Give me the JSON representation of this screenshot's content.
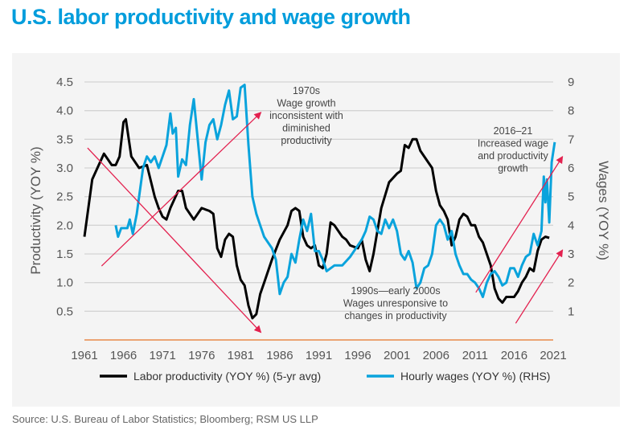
{
  "title": "U.S. labor productivity and wage growth",
  "source": "Source: U.S. Bureau of Labor Statistics; Bloomberg; RSM US LLP",
  "colors": {
    "title": "#009ddc",
    "productivity": "#000000",
    "wages": "#0aa3dc",
    "arrows": "#e3214f",
    "baseline": "#e88a4a"
  },
  "chart_data": {
    "type": "line",
    "title": "U.S. labor productivity and wage growth",
    "ylabel": "Productivity (YOY %)",
    "y2label": "Wages (YOY %)",
    "ylim": [
      0,
      4.5
    ],
    "y2lim": [
      0,
      9
    ],
    "xlim": [
      1961,
      2021
    ],
    "xticks": [
      "1961",
      "1966",
      "1971",
      "1976",
      "1981",
      "1986",
      "1991",
      "1996",
      "2001",
      "2006",
      "2011",
      "2016",
      "2021"
    ],
    "yticks": [
      "0.5",
      "1.0",
      "1.5",
      "2.0",
      "2.5",
      "3.0",
      "3.5",
      "4.0",
      "4.5"
    ],
    "y2ticks": [
      "1",
      "2",
      "3",
      "4",
      "5",
      "6",
      "7",
      "8",
      "9"
    ],
    "grid": true,
    "legend_position": "bottom",
    "series": [
      {
        "name": "Labor productivity (YOY %) (5-yr avg)",
        "axis": "left",
        "x": [
          1961,
          1962,
          1963,
          1963.5,
          1964.5,
          1965,
          1965.5,
          1966,
          1966.3,
          1967,
          1968,
          1969,
          1970,
          1970.5,
          1971,
          1971.5,
          1972,
          1973,
          1973.5,
          1974,
          1975,
          1976,
          1977,
          1977.5,
          1978,
          1978.5,
          1979,
          1979.5,
          1980,
          1980.5,
          1981,
          1981.5,
          1982,
          1982.5,
          1983,
          1983.5,
          1984,
          1985,
          1986,
          1987,
          1987.5,
          1988,
          1988.5,
          1989,
          1989.5,
          1990,
          1990.5,
          1991,
          1991.5,
          1992,
          1992.5,
          1993,
          1994,
          1994.5,
          1995,
          1996,
          1996.5,
          1997,
          1997.5,
          1998,
          1999,
          2000,
          2001,
          2001.5,
          2002,
          2002.5,
          2003,
          2003.5,
          2004,
          2005,
          2005.5,
          2006,
          2006.5,
          2007,
          2007.5,
          2008,
          2008.5,
          2009,
          2009.5,
          2010,
          2010.5,
          2011,
          2011.5,
          2012,
          2012.5,
          2013,
          2013.5,
          2014,
          2014.5,
          2015,
          2016,
          2016.5,
          2017,
          2017.5,
          2018,
          2018.5,
          2019,
          2019.5,
          2020,
          2020.5
        ],
        "values": [
          1.8,
          2.8,
          3.1,
          3.25,
          3.05,
          3.05,
          3.2,
          3.8,
          3.85,
          3.2,
          3.0,
          3.05,
          2.5,
          2.3,
          2.15,
          2.1,
          2.3,
          2.6,
          2.6,
          2.3,
          2.1,
          2.3,
          2.25,
          2.2,
          1.6,
          1.45,
          1.75,
          1.85,
          1.8,
          1.3,
          1.05,
          0.95,
          0.6,
          0.38,
          0.45,
          0.8,
          1.0,
          1.4,
          1.75,
          2.0,
          2.25,
          2.3,
          2.25,
          1.8,
          1.65,
          1.6,
          1.65,
          1.3,
          1.25,
          1.5,
          2.05,
          2.0,
          1.8,
          1.75,
          1.65,
          1.6,
          1.75,
          1.4,
          1.2,
          1.5,
          2.3,
          2.75,
          2.9,
          2.95,
          3.4,
          3.35,
          3.5,
          3.5,
          3.3,
          3.1,
          3.0,
          2.6,
          2.35,
          2.25,
          2.1,
          1.65,
          1.8,
          2.1,
          2.2,
          2.15,
          2.0,
          2.0,
          1.8,
          1.7,
          1.5,
          1.3,
          0.9,
          0.72,
          0.65,
          0.75,
          0.75,
          0.85,
          1.0,
          1.1,
          1.25,
          1.2,
          1.55,
          1.75,
          1.8,
          1.78
        ]
      },
      {
        "name": "Hourly wages (YOY %) (RHS)",
        "axis": "right",
        "x": [
          1965,
          1965.3,
          1965.7,
          1966.5,
          1966.8,
          1967.2,
          1967.7,
          1968,
          1968.5,
          1969,
          1969.5,
          1970,
          1970.5,
          1971,
          1971.5,
          1972,
          1972.3,
          1972.7,
          1973,
          1973.5,
          1974,
          1974.5,
          1975,
          1975.5,
          1976,
          1976.5,
          1977,
          1977.5,
          1978,
          1978.5,
          1979,
          1979.5,
          1980,
          1980.5,
          1981,
          1981.5,
          1982,
          1982.5,
          1983,
          1983.5,
          1984,
          1985,
          1985.5,
          1986,
          1986.5,
          1987,
          1987.5,
          1988,
          1988.5,
          1989,
          1989.5,
          1990,
          1990.5,
          1991,
          1991.5,
          1992,
          1993,
          1994,
          1995,
          1996,
          1996.5,
          1997,
          1997.5,
          1998,
          1998.5,
          1999,
          1999.5,
          2000,
          2000.5,
          2001,
          2001.5,
          2002,
          2002.5,
          2003,
          2003.5,
          2004,
          2004.5,
          2005,
          2005.5,
          2006,
          2006.5,
          2007,
          2007.5,
          2008,
          2008.5,
          2009,
          2009.5,
          2010,
          2010.5,
          2011,
          2011.5,
          2012,
          2012.5,
          2013,
          2013.5,
          2014,
          2014.5,
          2015,
          2015.5,
          2016,
          2016.5,
          2017,
          2017.5,
          2018,
          2018.5,
          2019,
          2019.5,
          2019.8,
          2020,
          2020.2,
          2020.5,
          2020.8,
          2021.2
        ],
        "values": [
          4.0,
          3.6,
          3.9,
          3.9,
          4.2,
          3.7,
          4.4,
          5.0,
          6.0,
          6.4,
          6.2,
          6.4,
          6.0,
          6.4,
          6.8,
          7.9,
          7.2,
          7.4,
          5.7,
          6.3,
          6.1,
          7.5,
          8.4,
          7.0,
          5.6,
          6.9,
          7.5,
          7.7,
          7.0,
          7.5,
          8.2,
          8.7,
          7.7,
          7.8,
          8.8,
          8.9,
          6.8,
          5.0,
          4.4,
          4.0,
          3.6,
          3.2,
          2.8,
          1.6,
          2.0,
          2.2,
          3.0,
          2.7,
          3.5,
          4.2,
          3.8,
          4.4,
          3.1,
          3.1,
          2.8,
          2.4,
          2.6,
          2.6,
          2.9,
          3.3,
          3.5,
          3.8,
          4.3,
          4.2,
          3.8,
          3.7,
          4.2,
          3.9,
          4.2,
          3.8,
          3.0,
          2.8,
          3.1,
          2.7,
          1.8,
          2.0,
          2.5,
          2.6,
          3.0,
          4.0,
          4.2,
          4.0,
          3.5,
          3.8,
          3.0,
          2.6,
          2.3,
          2.3,
          2.1,
          2.0,
          1.8,
          1.5,
          2.0,
          2.3,
          2.4,
          2.2,
          1.9,
          2.0,
          2.5,
          2.5,
          2.2,
          2.6,
          2.9,
          3.0,
          3.7,
          3.3,
          3.8,
          5.7,
          4.8,
          5.6,
          4.1,
          6.2,
          6.9
        ]
      }
    ],
    "annotations": [
      {
        "id": "a1970s",
        "lines": [
          "1970s",
          "Wage growth",
          "inconsistent with",
          "diminished",
          "productivity"
        ]
      },
      {
        "id": "a2016",
        "lines": [
          "2016–21",
          "Increased wage",
          "and productivity",
          "growth"
        ]
      },
      {
        "id": "a1990s",
        "lines": [
          "1990s—early 2000s",
          "Wages unresponsive to",
          "changes in productivity"
        ]
      }
    ]
  }
}
